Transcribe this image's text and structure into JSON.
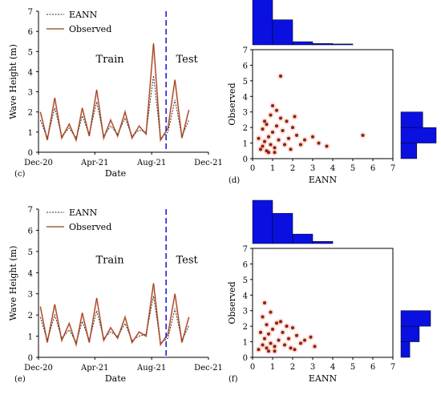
{
  "chart_data": [
    {
      "panel_label": "(c)",
      "type": "line",
      "xlabel": "Date",
      "ylabel": "Wave Height (m)",
      "ylim": [
        0,
        7
      ],
      "yticks": [
        "0",
        "1",
        "2",
        "3",
        "4",
        "5",
        "6",
        "7"
      ],
      "xlim": [
        "2020-12-01",
        "2021-12-01"
      ],
      "xticks": [
        "Dec-20",
        "Apr-21",
        "Aug-21",
        "Dec-21"
      ],
      "split_date": "2021-09-01",
      "region_labels": {
        "train": "Train",
        "test": "Test"
      },
      "series": [
        {
          "name": "EANN",
          "style": "dashed",
          "color": "#333333"
        },
        {
          "name": "Observed",
          "style": "solid",
          "color": "#8B4513"
        }
      ],
      "x": [
        "2020-12-05",
        "2020-12-20",
        "2021-01-05",
        "2021-01-20",
        "2021-02-05",
        "2021-02-20",
        "2021-03-05",
        "2021-03-20",
        "2021-04-05",
        "2021-04-20",
        "2021-05-05",
        "2021-05-20",
        "2021-06-05",
        "2021-06-20",
        "2021-07-05",
        "2021-07-20",
        "2021-08-05",
        "2021-08-20",
        "2021-09-05",
        "2021-09-20",
        "2021-10-05",
        "2021-10-20"
      ],
      "observed": [
        2.0,
        0.6,
        2.7,
        0.7,
        1.4,
        0.6,
        2.2,
        0.8,
        3.1,
        0.7,
        1.6,
        0.8,
        2.0,
        0.7,
        1.3,
        0.9,
        5.4,
        0.6,
        1.2,
        3.6,
        0.7,
        2.1
      ],
      "eann": [
        1.6,
        0.7,
        2.2,
        0.8,
        1.2,
        0.7,
        1.8,
        0.9,
        2.5,
        0.8,
        1.3,
        0.9,
        1.7,
        0.8,
        1.1,
        1.0,
        3.8,
        0.7,
        1.0,
        2.6,
        0.8,
        1.6
      ]
    },
    {
      "panel_label": "(d)",
      "type": "scatter",
      "xlabel": "EANN",
      "ylabel": "Observed",
      "xlim": [
        0,
        7
      ],
      "ylim": [
        0,
        7
      ],
      "xticks": [
        "0",
        "1",
        "2",
        "3",
        "4",
        "5",
        "6",
        "7"
      ],
      "yticks": [
        "0",
        "1",
        "2",
        "3",
        "4",
        "5",
        "6",
        "7"
      ],
      "points": [
        [
          0.4,
          0.6
        ],
        [
          0.5,
          0.8
        ],
        [
          0.6,
          1.1
        ],
        [
          0.7,
          0.5
        ],
        [
          0.8,
          1.4
        ],
        [
          0.9,
          0.9
        ],
        [
          1.0,
          1.7
        ],
        [
          1.1,
          0.7
        ],
        [
          1.2,
          2.1
        ],
        [
          1.3,
          1.2
        ],
        [
          0.6,
          2.4
        ],
        [
          0.9,
          2.8
        ],
        [
          1.0,
          3.4
        ],
        [
          1.2,
          3.1
        ],
        [
          1.5,
          1.8
        ],
        [
          1.6,
          0.9
        ],
        [
          1.8,
          1.3
        ],
        [
          2.0,
          2.0
        ],
        [
          2.2,
          1.5
        ],
        [
          2.4,
          0.9
        ],
        [
          2.6,
          1.2
        ],
        [
          3.0,
          1.4
        ],
        [
          3.3,
          1.0
        ],
        [
          3.7,
          0.8
        ],
        [
          1.4,
          5.3
        ],
        [
          5.5,
          1.5
        ],
        [
          0.3,
          1.3
        ],
        [
          0.5,
          1.9
        ],
        [
          0.7,
          2.2
        ],
        [
          1.4,
          2.6
        ],
        [
          1.7,
          2.4
        ],
        [
          2.1,
          2.7
        ],
        [
          0.8,
          0.4
        ],
        [
          1.1,
          0.4
        ],
        [
          1.9,
          0.6
        ]
      ],
      "hist_top": [
        1.0,
        0.55,
        0.07,
        0.03,
        0.02
      ],
      "hist_right": [
        0.45,
        1.0,
        0.62
      ]
    },
    {
      "panel_label": "(e)",
      "type": "line",
      "xlabel": "Date",
      "ylabel": "Wave Height (m)",
      "ylim": [
        0,
        7
      ],
      "yticks": [
        "0",
        "1",
        "2",
        "3",
        "4",
        "5",
        "6",
        "7"
      ],
      "xlim": [
        "2020-12-01",
        "2021-12-01"
      ],
      "xticks": [
        "Dec-20",
        "Apr-21",
        "Aug-21",
        "Dec-21"
      ],
      "split_date": "2021-09-01",
      "region_labels": {
        "train": "Train",
        "test": "Test"
      },
      "series": [
        {
          "name": "EANN",
          "style": "dashed",
          "color": "#333333"
        },
        {
          "name": "Observed",
          "style": "solid",
          "color": "#8B4513"
        }
      ],
      "x": [
        "2020-12-05",
        "2020-12-20",
        "2021-01-05",
        "2021-01-20",
        "2021-02-05",
        "2021-02-20",
        "2021-03-05",
        "2021-03-20",
        "2021-04-05",
        "2021-04-20",
        "2021-05-05",
        "2021-05-20",
        "2021-06-05",
        "2021-06-20",
        "2021-07-05",
        "2021-07-20",
        "2021-08-05",
        "2021-08-20",
        "2021-09-05",
        "2021-09-20",
        "2021-10-05",
        "2021-10-20"
      ],
      "observed": [
        2.4,
        0.7,
        2.5,
        0.8,
        1.6,
        0.6,
        2.1,
        0.7,
        2.8,
        0.8,
        1.4,
        0.9,
        1.9,
        0.7,
        1.2,
        1.0,
        3.5,
        0.6,
        1.1,
        3.0,
        0.7,
        1.9
      ],
      "eann": [
        1.9,
        0.8,
        2.0,
        0.9,
        1.3,
        0.7,
        1.7,
        0.8,
        2.2,
        0.9,
        1.2,
        1.0,
        1.6,
        0.8,
        1.0,
        1.1,
        2.9,
        0.7,
        0.9,
        2.3,
        0.8,
        1.5
      ]
    },
    {
      "panel_label": "(f)",
      "type": "scatter",
      "xlabel": "EANN",
      "ylabel": "Observed",
      "xlim": [
        0,
        7
      ],
      "ylim": [
        0,
        7
      ],
      "xticks": [
        "0",
        "1",
        "2",
        "3",
        "4",
        "5",
        "6",
        "7"
      ],
      "yticks": [
        "0",
        "1",
        "2",
        "3",
        "4",
        "5",
        "6",
        "7"
      ],
      "points": [
        [
          0.3,
          0.5
        ],
        [
          0.5,
          0.8
        ],
        [
          0.6,
          1.2
        ],
        [
          0.7,
          0.6
        ],
        [
          0.8,
          1.5
        ],
        [
          0.9,
          0.9
        ],
        [
          1.0,
          1.8
        ],
        [
          1.1,
          0.7
        ],
        [
          1.2,
          2.2
        ],
        [
          1.3,
          1.1
        ],
        [
          0.5,
          2.6
        ],
        [
          0.6,
          3.5
        ],
        [
          0.9,
          2.9
        ],
        [
          1.5,
          1.6
        ],
        [
          1.6,
          0.8
        ],
        [
          1.8,
          1.2
        ],
        [
          2.0,
          1.9
        ],
        [
          2.2,
          1.4
        ],
        [
          2.4,
          0.9
        ],
        [
          2.6,
          1.1
        ],
        [
          2.9,
          1.3
        ],
        [
          3.1,
          0.7
        ],
        [
          0.4,
          1.6
        ],
        [
          0.7,
          2.1
        ],
        [
          1.4,
          2.3
        ],
        [
          1.7,
          2.0
        ],
        [
          0.8,
          0.4
        ],
        [
          1.1,
          0.4
        ],
        [
          1.9,
          0.6
        ],
        [
          2.1,
          0.5
        ]
      ],
      "hist_top": [
        1.0,
        0.7,
        0.22,
        0.05
      ],
      "hist_right": [
        0.3,
        0.62,
        1.0
      ]
    }
  ]
}
